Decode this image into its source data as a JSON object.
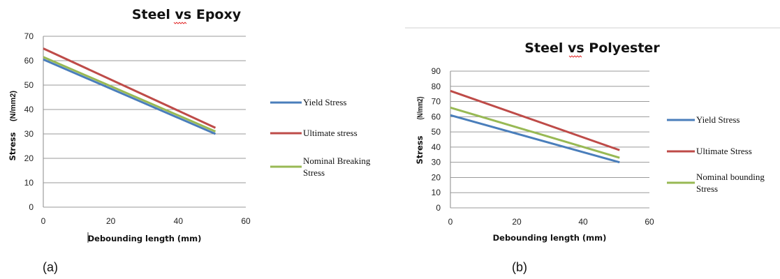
{
  "chart_data": [
    {
      "type": "line",
      "panel_caption": "(a)",
      "title": "Steel vs Epoxy",
      "xlabel": "Debounding length (mm)",
      "ylabel": "Stress",
      "ylabel_unit": "(N/mm2)",
      "xlim": [
        0,
        60
      ],
      "ylim": [
        0,
        70
      ],
      "x_ticks": [
        "0",
        "20",
        "40",
        "60"
      ],
      "y_ticks": [
        "0",
        "10",
        "20",
        "30",
        "40",
        "50",
        "60",
        "70"
      ],
      "grid": "horizontal",
      "legend_position": "right",
      "series": [
        {
          "name": "Yield Stress",
          "color": "#4a7ebb",
          "x": [
            0,
            51
          ],
          "y": [
            60.5,
            30.0
          ]
        },
        {
          "name": "Ultimate stress",
          "color": "#be4b48",
          "x": [
            0,
            51
          ],
          "y": [
            65.0,
            32.5
          ]
        },
        {
          "name": "Nominal Breaking Stress",
          "color": "#98b954",
          "x": [
            0,
            51
          ],
          "y": [
            61.5,
            31.0
          ]
        }
      ]
    },
    {
      "type": "line",
      "panel_caption": "(b)",
      "title": "Steel vs Polyester",
      "xlabel": "Debounding length (mm)",
      "ylabel": "Stress",
      "ylabel_unit": "(N/mm2)",
      "xlim": [
        0,
        60
      ],
      "ylim": [
        0,
        90
      ],
      "x_ticks": [
        "0",
        "20",
        "40",
        "60"
      ],
      "y_ticks": [
        "0",
        "10",
        "20",
        "30",
        "40",
        "50",
        "60",
        "70",
        "80",
        "90"
      ],
      "grid": "horizontal",
      "legend_position": "right",
      "series": [
        {
          "name": "Yield Stress",
          "color": "#4a7ebb",
          "x": [
            0,
            51
          ],
          "y": [
            61.0,
            30.0
          ]
        },
        {
          "name": "Ultimate Stress",
          "color": "#be4b48",
          "x": [
            0,
            51
          ],
          "y": [
            77.0,
            38.0
          ]
        },
        {
          "name": "Nominal bounding Stress",
          "color": "#98b954",
          "x": [
            0,
            51
          ],
          "y": [
            66.0,
            33.0
          ]
        }
      ]
    }
  ]
}
